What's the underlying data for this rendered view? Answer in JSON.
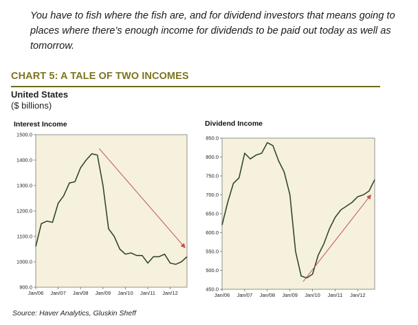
{
  "quote": "You have to fish where the fish are, and for dividend investors that means going to places where there’s enough income for dividends to be paid out today as well as tomorrow.",
  "header": {
    "title": "CHART 5: A TALE OF TWO INCOMES",
    "subtitle": "United States",
    "units": "($ billions)"
  },
  "source": "Source: Haver Analytics, Gluskin Sheff",
  "colors": {
    "line": "#2f4a25",
    "plot_bg": "#f6f1dc",
    "trend_arrow": "#c0504d",
    "title": "#7d7420"
  },
  "chart_data": [
    {
      "type": "line",
      "title": "Interest Income",
      "ylim": [
        900,
        1500
      ],
      "yticks": [
        "1500.0",
        "1400.0",
        "1300.0",
        "1200.0",
        "1100.0",
        "1000.0",
        "900.0"
      ],
      "yticks_values": [
        1500,
        1400,
        1300,
        1200,
        1100,
        1000,
        900
      ],
      "xticks": [
        "Jan/06",
        "Jan/07",
        "Jan/08",
        "Jan/09",
        "Jan/10",
        "Jan/11",
        "Jan/12"
      ],
      "xlim": [
        "2006-01",
        "2012-10"
      ],
      "x": [
        "2006-01",
        "2006-04",
        "2006-07",
        "2006-10",
        "2007-01",
        "2007-04",
        "2007-07",
        "2007-10",
        "2008-01",
        "2008-04",
        "2008-07",
        "2008-10",
        "2009-01",
        "2009-04",
        "2009-07",
        "2009-10",
        "2010-01",
        "2010-04",
        "2010-07",
        "2010-10",
        "2011-01",
        "2011-04",
        "2011-07",
        "2011-10",
        "2012-01",
        "2012-04",
        "2012-07",
        "2012-10"
      ],
      "values": [
        1060,
        1150,
        1160,
        1155,
        1230,
        1260,
        1310,
        1315,
        1370,
        1400,
        1425,
        1420,
        1300,
        1130,
        1100,
        1050,
        1030,
        1035,
        1025,
        1025,
        995,
        1020,
        1020,
        1030,
        995,
        990,
        1000,
        1020
      ],
      "trend_arrow": {
        "from": [
          "2008-11",
          1445
        ],
        "to": [
          "2012-09",
          1055
        ]
      }
    },
    {
      "type": "line",
      "title": "Dividend Income",
      "ylim": [
        450,
        850
      ],
      "yticks": [
        "850.0",
        "800.0",
        "750.0",
        "700.0",
        "650.0",
        "600.0",
        "550.0",
        "500.0",
        "450.0"
      ],
      "yticks_values": [
        850,
        800,
        750,
        700,
        650,
        600,
        550,
        500,
        450
      ],
      "xticks": [
        "Jan/06",
        "Jan/07",
        "Jan/08",
        "Jan/09",
        "Jan/10",
        "Jan/11",
        "Jan/12"
      ],
      "xlim": [
        "2006-01",
        "2012-10"
      ],
      "x": [
        "2006-01",
        "2006-04",
        "2006-07",
        "2006-10",
        "2007-01",
        "2007-04",
        "2007-07",
        "2007-10",
        "2008-01",
        "2008-04",
        "2008-07",
        "2008-10",
        "2009-01",
        "2009-04",
        "2009-07",
        "2009-10",
        "2010-01",
        "2010-04",
        "2010-07",
        "2010-10",
        "2011-01",
        "2011-04",
        "2011-07",
        "2011-10",
        "2012-01",
        "2012-04",
        "2012-07",
        "2012-10"
      ],
      "values": [
        620,
        680,
        730,
        745,
        810,
        795,
        805,
        810,
        838,
        830,
        790,
        760,
        700,
        550,
        485,
        480,
        490,
        540,
        570,
        610,
        640,
        660,
        670,
        680,
        695,
        700,
        710,
        740
      ],
      "trend_arrow": {
        "from": [
          "2009-08",
          470
        ],
        "to": [
          "2012-08",
          700
        ]
      }
    }
  ]
}
